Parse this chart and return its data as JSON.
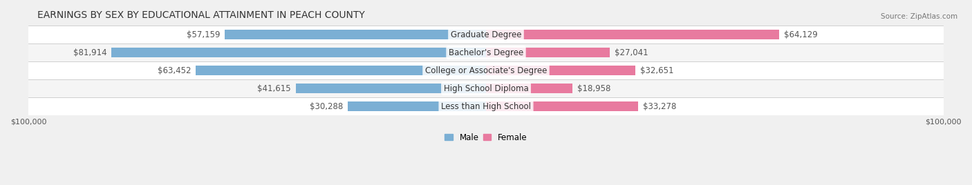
{
  "title": "EARNINGS BY SEX BY EDUCATIONAL ATTAINMENT IN PEACH COUNTY",
  "source": "Source: ZipAtlas.com",
  "categories": [
    "Less than High School",
    "High School Diploma",
    "College or Associate's Degree",
    "Bachelor's Degree",
    "Graduate Degree"
  ],
  "male_values": [
    30288,
    41615,
    63452,
    81914,
    57159
  ],
  "female_values": [
    33278,
    18958,
    32651,
    27041,
    64129
  ],
  "male_color": "#7bafd4",
  "female_color": "#e87a9f",
  "bar_height": 0.55,
  "xlim": 100000,
  "bg_color": "#f0f0f0",
  "row_colors": [
    "#ffffff",
    "#f5f5f5"
  ],
  "title_fontsize": 10,
  "label_fontsize": 8.5,
  "tick_fontsize": 8,
  "source_fontsize": 7.5
}
